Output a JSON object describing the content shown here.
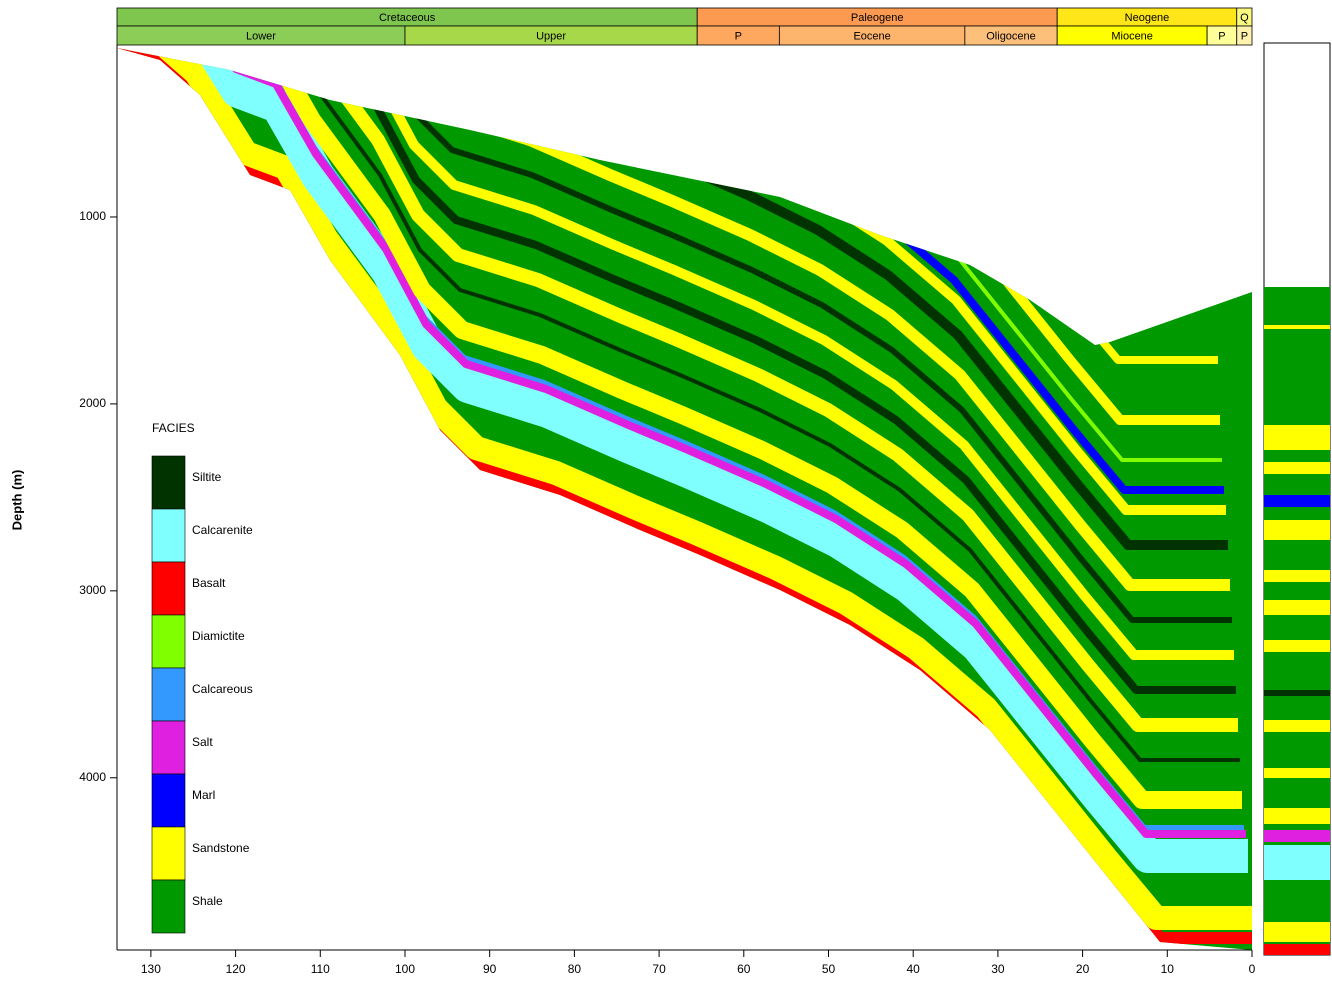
{
  "chart_data": {
    "type": "section",
    "ylabel": "Depth (m)",
    "xlim": [
      134,
      0
    ],
    "ylim": [
      80,
      4900
    ],
    "xticks": [
      130,
      120,
      110,
      100,
      90,
      80,
      70,
      60,
      50,
      40,
      30,
      20,
      10,
      0
    ],
    "yticks": [
      1000,
      2000,
      3000,
      4000
    ],
    "periods": [
      {
        "name": "Cretaceous",
        "color": "#7fc64e",
        "from": 134,
        "to": 65.5
      },
      {
        "name": "Paleogene",
        "color": "#fd9a52",
        "from": 65.5,
        "to": 23
      },
      {
        "name": "Neogene",
        "color": "#ffe619",
        "from": 23,
        "to": 1.8
      },
      {
        "name": "Q",
        "color": "#f9f97f",
        "from": 1.8,
        "to": 0
      }
    ],
    "epochs": [
      {
        "name": "Lower",
        "color": "#8ccd57",
        "from": 134,
        "to": 100
      },
      {
        "name": "Upper",
        "color": "#a6d84a",
        "from": 100,
        "to": 65.5
      },
      {
        "name": "P",
        "color": "#fda75f",
        "from": 65.5,
        "to": 55.8
      },
      {
        "name": "Eocene",
        "color": "#fdb46c",
        "from": 55.8,
        "to": 33.9
      },
      {
        "name": "Oligocene",
        "color": "#fdc07a",
        "from": 33.9,
        "to": 23
      },
      {
        "name": "Miocene",
        "color": "#ffff00",
        "from": 23,
        "to": 5.3
      },
      {
        "name": "P",
        "color": "#ffff99",
        "from": 5.3,
        "to": 1.8
      },
      {
        "name": "P",
        "color": "#fff2ae",
        "from": 1.8,
        "to": 0
      }
    ],
    "legend_title": "FACIES",
    "facies": [
      {
        "name": "Siltite",
        "color": "#003300"
      },
      {
        "name": "Calcarenite",
        "color": "#80ffff"
      },
      {
        "name": "Basalt",
        "color": "#ff0000"
      },
      {
        "name": "Diamictite",
        "color": "#80ff00"
      },
      {
        "name": "Calcareous",
        "color": "#3399ff"
      },
      {
        "name": "Salt",
        "color": "#e020e0"
      },
      {
        "name": "Marl",
        "color": "#0000ff"
      },
      {
        "name": "Sandstone",
        "color": "#ffff00"
      },
      {
        "name": "Shale",
        "color": "#009900"
      }
    ]
  }
}
